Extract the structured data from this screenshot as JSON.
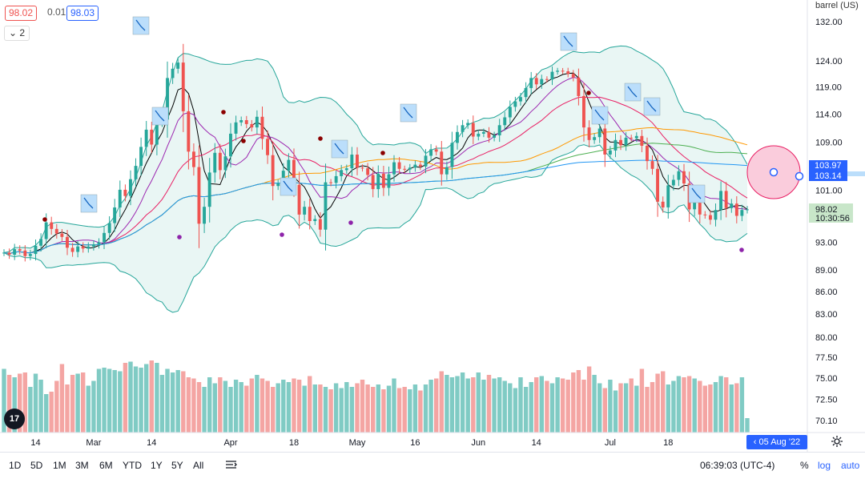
{
  "header": {
    "bid": "98.02",
    "spread": "0.01",
    "ask": "98.03",
    "indicator_count": "2",
    "unit_label": "barrel (US)"
  },
  "price_axis": {
    "ticks": [
      "132.00",
      "124.00",
      "119.00",
      "114.00",
      "109.00",
      "101.00",
      "93.00",
      "89.00",
      "86.00",
      "83.00",
      "80.00",
      "77.50",
      "75.00",
      "72.50",
      "70.10"
    ],
    "badges": {
      "bb_upper": "103.97",
      "bb_lower": "103.14",
      "last_price": "98.02",
      "countdown": "10:30:56"
    }
  },
  "time_axis": {
    "ticks": [
      "14",
      "Mar",
      "14",
      "Apr",
      "18",
      "May",
      "16",
      "Jun",
      "14",
      "Jul",
      "18"
    ],
    "crosshair_date": "05 Aug '22"
  },
  "bottom_bar": {
    "ranges": [
      "1D",
      "5D",
      "1M",
      "3M",
      "6M",
      "YTD",
      "1Y",
      "5Y",
      "All"
    ],
    "clock": "06:39:03 (UTC-4)",
    "percent_label": "%",
    "log_label": "log",
    "auto_label": "auto"
  },
  "logo_text": "17",
  "colors": {
    "up": "#26a69a",
    "down": "#ef5350",
    "up_vol": "#80cbc4",
    "down_vol": "#f4a5a3",
    "bb_fill": "#e0f2ef",
    "bb_band": "#26a69a",
    "ma200": "#2196f3",
    "ma100": "#4caf50",
    "ma50": "#ff9800",
    "ma20": "#e91e63",
    "ma10": "#9c27b0",
    "ma5": "#000000",
    "accent": "#2962ff"
  },
  "icons": [
    "tradingview-logo-icon",
    "calendar-range-icon",
    "settings-gear-icon",
    "signal-flag-icon",
    "target-circle-icon"
  ],
  "chart_data": {
    "type": "candlestick",
    "title": "",
    "ylabel": "",
    "ylim": [
      70.1,
      132.0
    ],
    "series": [
      {
        "values": [
          91.5,
          91.2,
          92.0,
          91.8,
          91.0,
          91.3,
          92.5,
          93.5,
          96.0,
          95.0,
          94.3,
          93.8,
          92.2,
          91.6,
          92.4,
          92.1,
          92.4,
          92.7,
          93.0,
          94.4,
          95.9,
          98.3,
          101.1,
          100.1,
          102.8,
          105.0,
          108.2,
          111.2,
          108.6,
          112.4,
          113.0,
          120.7,
          122.5,
          123.7,
          114.5,
          107.4,
          104.8,
          95.8,
          98.4,
          103.9,
          107.2,
          104.3,
          106.6,
          110.5,
          112.5,
          112.9,
          112.2,
          111.6,
          113.5,
          109.6,
          106.8,
          101.7,
          102.1,
          104.2,
          106.0,
          101.9,
          97.2,
          98.4,
          96.2,
          96.5,
          94.9,
          102.3,
          102.2,
          103.3,
          104.3,
          104.6,
          106.9,
          104.7,
          104.6,
          103.5,
          101.2,
          103.7,
          101.4,
          103.6,
          105.6,
          104.5,
          104.4,
          104.7,
          105.2,
          104.9,
          106.7,
          107.8,
          107.4,
          103.6,
          104.8,
          108.9,
          110.8,
          112.0,
          112.4,
          110.0,
          110.5,
          110.8,
          109.8,
          110.2,
          112.0,
          113.4,
          115.3,
          116.3,
          117.1,
          118.8,
          120.7,
          119.5,
          120.5,
          120.4,
          121.9,
          122.1,
          122.0,
          121.5,
          120.8,
          117.3,
          111.6,
          109.4,
          109.9,
          111.4,
          106.9,
          107.6,
          109.4,
          108.5,
          109.8,
          109.7,
          110.1,
          108.4,
          105.8,
          104.5,
          99.2,
          98.3,
          101.8,
          102.7,
          104.1,
          102.1,
          98.0,
          99.6,
          97.2,
          97.1,
          96.4,
          97.9,
          100.9,
          98.2,
          98.9,
          97.0,
          97.9,
          98.0
        ]
      }
    ],
    "volume_ylim": [
      0,
      1
    ],
    "volume_values": [
      0.53,
      0.48,
      0.46,
      0.49,
      0.5,
      0.38,
      0.49,
      0.44,
      0.32,
      0.34,
      0.43,
      0.57,
      0.4,
      0.48,
      0.49,
      0.5,
      0.39,
      0.43,
      0.53,
      0.54,
      0.53,
      0.52,
      0.51,
      0.58,
      0.59,
      0.55,
      0.54,
      0.57,
      0.6,
      0.58,
      0.48,
      0.53,
      0.5,
      0.52,
      0.51,
      0.46,
      0.45,
      0.42,
      0.38,
      0.46,
      0.41,
      0.46,
      0.43,
      0.38,
      0.44,
      0.42,
      0.39,
      0.45,
      0.48,
      0.45,
      0.43,
      0.38,
      0.41,
      0.44,
      0.42,
      0.45,
      0.44,
      0.39,
      0.47,
      0.4,
      0.4,
      0.38,
      0.36,
      0.41,
      0.37,
      0.42,
      0.38,
      0.41,
      0.44,
      0.4,
      0.38,
      0.4,
      0.36,
      0.39,
      0.45,
      0.37,
      0.38,
      0.36,
      0.4,
      0.35,
      0.4,
      0.44,
      0.45,
      0.51,
      0.48,
      0.46,
      0.47,
      0.5,
      0.45,
      0.46,
      0.5,
      0.44,
      0.48,
      0.45,
      0.46,
      0.43,
      0.41,
      0.37,
      0.46,
      0.38,
      0.42,
      0.46,
      0.47,
      0.43,
      0.41,
      0.46,
      0.45,
      0.44,
      0.5,
      0.52,
      0.44,
      0.55,
      0.48,
      0.41,
      0.37,
      0.44,
      0.35,
      0.41,
      0.41,
      0.45,
      0.39,
      0.53,
      0.38,
      0.42,
      0.49,
      0.51,
      0.4,
      0.43,
      0.47,
      0.46,
      0.47,
      0.45,
      0.43,
      0.39,
      0.4,
      0.42,
      0.47,
      0.46,
      0.4,
      0.41,
      0.46,
      0.12
    ]
  }
}
